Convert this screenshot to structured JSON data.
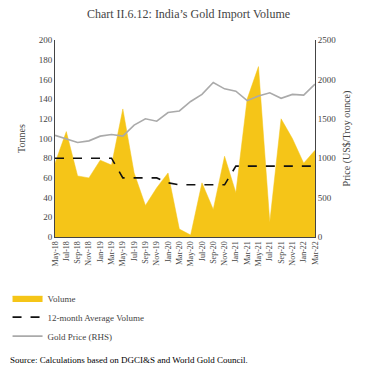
{
  "chart_data": {
    "type": "line",
    "title": "Chart II.6.12: India’s Gold Import Volume",
    "categories": [
      "May-18",
      "Jul-18",
      "Sep-18",
      "Nov-18",
      "Jan-19",
      "Mar-19",
      "May-19",
      "Jul-19",
      "Sep-19",
      "Nov-19",
      "Jan-20",
      "Mar-20",
      "May-20",
      "Jul-20",
      "Sep-20",
      "Nov-20",
      "Jan-21",
      "Mar-21",
      "May-21",
      "Jul-21",
      "Sep-21",
      "Nov-21",
      "Jan-22",
      "Mar-22"
    ],
    "series": [
      {
        "name": "Volume",
        "type": "area",
        "color": "#F5C518",
        "values": [
          75,
          107,
          62,
          60,
          78,
          73,
          130,
          65,
          32,
          50,
          65,
          8,
          2,
          55,
          28,
          82,
          45,
          140,
          173,
          15,
          120,
          100,
          75,
          88
        ]
      },
      {
        "name": "12-month Average Volume",
        "type": "line",
        "line_style": "dashed",
        "color": "#111111",
        "values": [
          80,
          80,
          80,
          80,
          80,
          80,
          60,
          60,
          60,
          60,
          55,
          53,
          53,
          53,
          53,
          53,
          72,
          72,
          72,
          72,
          72,
          72,
          72,
          72
        ]
      },
      {
        "name": "Gold Price (RHS)",
        "type": "line",
        "color": "#aaaaaa",
        "axis": "y2",
        "values": [
          1290,
          1240,
          1200,
          1220,
          1280,
          1300,
          1280,
          1420,
          1500,
          1470,
          1580,
          1600,
          1720,
          1810,
          1960,
          1880,
          1850,
          1730,
          1790,
          1830,
          1760,
          1810,
          1800,
          1940
        ]
      }
    ],
    "ylabel": "Tonnes",
    "y2label": "Price (US$/Troy ounce)",
    "ylim": [
      0,
      200
    ],
    "yticks": [
      0,
      20,
      40,
      60,
      80,
      100,
      120,
      140,
      160,
      180,
      200
    ],
    "y2lim": [
      0,
      2500
    ],
    "y2ticks": [
      0,
      500,
      1000,
      1500,
      2000,
      2500
    ],
    "grid": false,
    "legend": "bottom",
    "annotations": [
      "Source: Calculations based on DGCI&S and World Gold Council."
    ]
  }
}
